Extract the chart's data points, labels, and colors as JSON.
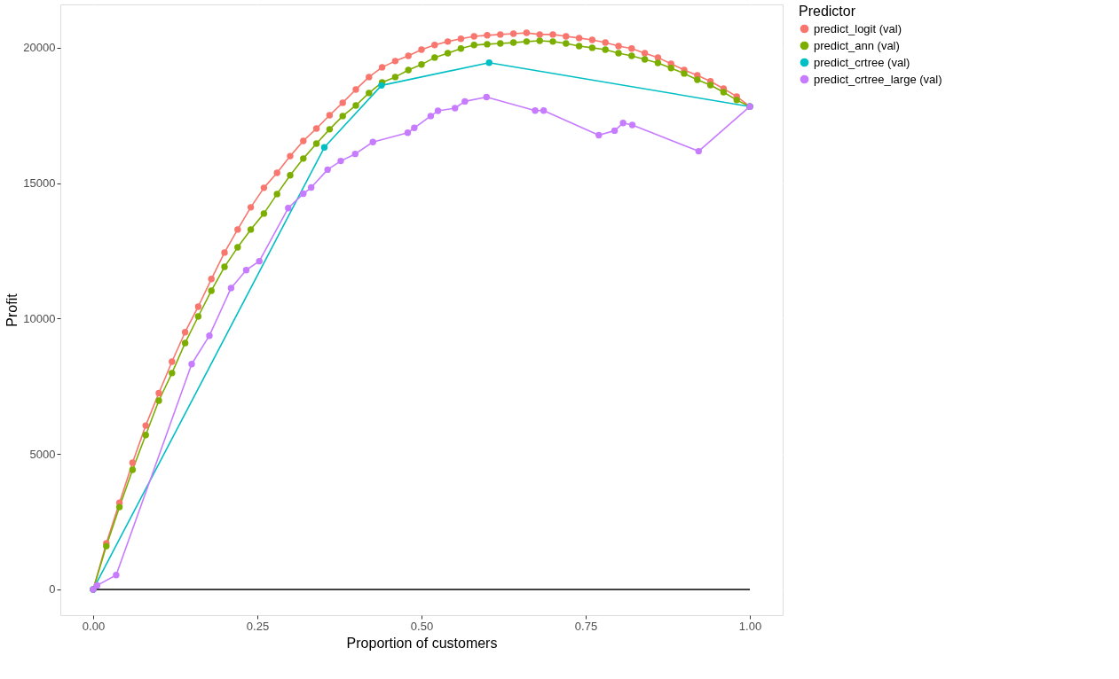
{
  "chart_data": {
    "type": "line",
    "xlabel": "Proportion of customers",
    "ylabel": "Profit",
    "legend_title": "Predictor",
    "legend": "right",
    "grid": true,
    "marker": "circle",
    "line_style": "solid",
    "xlim": [
      -0.05,
      1.05
    ],
    "xticks": [
      {
        "value": 0,
        "label": "0.00"
      },
      {
        "value": 0.25,
        "label": "0.25"
      },
      {
        "value": 0.5,
        "label": "0.50"
      },
      {
        "value": 0.75,
        "label": "0.75"
      },
      {
        "value": 1,
        "label": "1.00"
      }
    ],
    "ylim": [
      -950,
      21600
    ],
    "yticks": [
      0,
      5000,
      10000,
      15000,
      20000
    ],
    "ref_lines": [
      {
        "axis": "y",
        "value": 0,
        "color": "#000000"
      }
    ],
    "series": [
      {
        "name": "predict_logit (val)",
        "color": "#f8766d",
        "x": [
          0,
          0.02,
          0.04,
          0.06,
          0.08,
          0.1,
          0.12,
          0.14,
          0.16,
          0.18,
          0.2,
          0.22,
          0.24,
          0.26,
          0.28,
          0.3,
          0.32,
          0.34,
          0.36,
          0.38,
          0.4,
          0.42,
          0.44,
          0.46,
          0.48,
          0.5,
          0.52,
          0.54,
          0.56,
          0.58,
          0.6,
          0.62,
          0.64,
          0.66,
          0.68,
          0.7,
          0.72,
          0.74,
          0.76,
          0.78,
          0.8,
          0.82,
          0.84,
          0.86,
          0.88,
          0.9,
          0.92,
          0.94,
          0.96,
          0.98,
          1
        ],
        "values": [
          0,
          1700,
          3200,
          4680,
          6050,
          7250,
          8410,
          9500,
          10440,
          11460,
          12440,
          13290,
          14110,
          14830,
          15380,
          16000,
          16560,
          17020,
          17510,
          17970,
          18460,
          18920,
          19280,
          19510,
          19700,
          19930,
          20100,
          20230,
          20330,
          20420,
          20460,
          20490,
          20520,
          20550,
          20490,
          20490,
          20420,
          20360,
          20290,
          20190,
          20060,
          19970,
          19800,
          19640,
          19410,
          19180,
          18980,
          18760,
          18490,
          18200,
          17830
        ]
      },
      {
        "name": "predict_ann (val)",
        "color": "#7cae00",
        "x": [
          0,
          0.02,
          0.04,
          0.06,
          0.08,
          0.1,
          0.12,
          0.14,
          0.16,
          0.18,
          0.2,
          0.22,
          0.24,
          0.26,
          0.28,
          0.3,
          0.32,
          0.34,
          0.36,
          0.38,
          0.4,
          0.42,
          0.44,
          0.46,
          0.48,
          0.5,
          0.52,
          0.54,
          0.56,
          0.58,
          0.6,
          0.62,
          0.64,
          0.66,
          0.68,
          0.7,
          0.72,
          0.74,
          0.76,
          0.78,
          0.8,
          0.82,
          0.84,
          0.86,
          0.88,
          0.9,
          0.92,
          0.94,
          0.96,
          0.98,
          1
        ],
        "values": [
          0,
          1600,
          3040,
          4420,
          5700,
          6970,
          7990,
          9100,
          10080,
          11030,
          11910,
          12630,
          13290,
          13880,
          14600,
          15290,
          15910,
          16460,
          16990,
          17480,
          17870,
          18330,
          18720,
          18920,
          19180,
          19380,
          19640,
          19800,
          19970,
          20100,
          20130,
          20160,
          20190,
          20230,
          20260,
          20230,
          20160,
          20060,
          20000,
          19930,
          19800,
          19700,
          19570,
          19440,
          19250,
          19050,
          18820,
          18620,
          18360,
          18070,
          17830
        ]
      },
      {
        "name": "predict_crtree (val)",
        "color": "#00bfc4",
        "x": [
          0,
          0.352,
          0.439,
          0.603,
          1
        ],
        "values": [
          0,
          16320,
          18610,
          19450,
          17830
        ]
      },
      {
        "name": "predict_crtree_large (val)",
        "color": "#c77cff",
        "x": [
          0,
          0.006,
          0.035,
          0.15,
          0.177,
          0.21,
          0.233,
          0.253,
          0.297,
          0.32,
          0.332,
          0.357,
          0.377,
          0.399,
          0.426,
          0.479,
          0.489,
          0.514,
          0.525,
          0.551,
          0.566,
          0.599,
          0.673,
          0.686,
          0.77,
          0.794,
          0.807,
          0.821,
          0.922,
          1
        ],
        "values": [
          0,
          150,
          530,
          8320,
          9370,
          11130,
          11790,
          12120,
          14080,
          14610,
          14840,
          15500,
          15820,
          16080,
          16520,
          16860,
          17040,
          17480,
          17670,
          17770,
          18020,
          18180,
          17680,
          17680,
          16770,
          16940,
          17220,
          17150,
          16180,
          17830
        ]
      }
    ]
  }
}
